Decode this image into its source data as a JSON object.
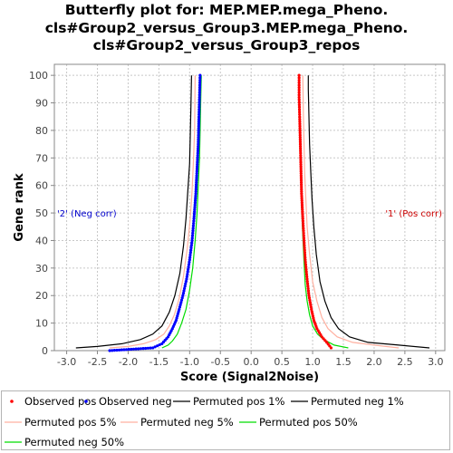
{
  "chart_data": {
    "type": "line",
    "title_lines": [
      "Butterfly plot for: MEP.MEP.mega_Pheno.",
      "cls#Group2_versus_Group3.MEP.mega_Pheno.",
      "cls#Group2_versus_Group3_repos"
    ],
    "xlabel": "Score (Signal2Noise)",
    "ylabel": "Gene rank",
    "xlim": [
      -3.2,
      3.15
    ],
    "ylim": [
      0,
      104
    ],
    "xticks": [
      "-3.0",
      "-2.5",
      "-2.0",
      "-1.5",
      "-1.0",
      "-0.5",
      "0.0",
      "0.5",
      "1.0",
      "1.5",
      "2.0",
      "2.5",
      "3.0"
    ],
    "yticks": [
      "0",
      "10",
      "20",
      "30",
      "40",
      "50",
      "60",
      "70",
      "80",
      "90",
      "100"
    ],
    "grid": true,
    "annotations": {
      "neg": {
        "text": "'2' (Neg corr)",
        "color": "#0000cc"
      },
      "pos": {
        "text": "'1' (Pos corr)",
        "color": "#cc0000"
      }
    },
    "series": [
      {
        "name": "Observed pos",
        "style": "dots",
        "color": "#ff0000",
        "points": [
          [
            1.3,
            1
          ],
          [
            1.23,
            3
          ],
          [
            1.15,
            5
          ],
          [
            1.07,
            8
          ],
          [
            1.02,
            11
          ],
          [
            0.98,
            15
          ],
          [
            0.94,
            20
          ],
          [
            0.91,
            26
          ],
          [
            0.88,
            33
          ],
          [
            0.86,
            40
          ],
          [
            0.84,
            48
          ],
          [
            0.82,
            57
          ],
          [
            0.81,
            66
          ],
          [
            0.8,
            75
          ],
          [
            0.79,
            84
          ],
          [
            0.78,
            92
          ],
          [
            0.78,
            100
          ]
        ]
      },
      {
        "name": "Observed neg",
        "style": "dots",
        "color": "#0000ff",
        "points": [
          [
            -2.3,
            0
          ],
          [
            -1.6,
            1
          ],
          [
            -1.45,
            2.5
          ],
          [
            -1.35,
            5
          ],
          [
            -1.28,
            8
          ],
          [
            -1.22,
            11
          ],
          [
            -1.17,
            15
          ],
          [
            -1.11,
            20
          ],
          [
            -1.05,
            26
          ],
          [
            -1.0,
            33
          ],
          [
            -0.96,
            40
          ],
          [
            -0.93,
            48
          ],
          [
            -0.9,
            57
          ],
          [
            -0.88,
            66
          ],
          [
            -0.86,
            75
          ],
          [
            -0.85,
            84
          ],
          [
            -0.84,
            92
          ],
          [
            -0.83,
            100
          ]
        ]
      },
      {
        "name": "Permuted pos 1%",
        "style": "line",
        "color": "#000000",
        "points": [
          [
            2.9,
            1
          ],
          [
            2.4,
            2
          ],
          [
            1.9,
            3
          ],
          [
            1.6,
            5
          ],
          [
            1.42,
            8
          ],
          [
            1.3,
            12
          ],
          [
            1.2,
            18
          ],
          [
            1.12,
            25
          ],
          [
            1.06,
            35
          ],
          [
            1.02,
            45
          ],
          [
            0.99,
            55
          ],
          [
            0.97,
            65
          ],
          [
            0.95,
            75
          ],
          [
            0.94,
            85
          ],
          [
            0.93,
            95
          ],
          [
            0.93,
            100
          ]
        ]
      },
      {
        "name": "Permuted neg 1%",
        "style": "line",
        "color": "#000000",
        "points": [
          [
            -2.85,
            1
          ],
          [
            -2.5,
            1.5
          ],
          [
            -2.1,
            2.5
          ],
          [
            -1.8,
            4
          ],
          [
            -1.6,
            6
          ],
          [
            -1.45,
            9
          ],
          [
            -1.33,
            14
          ],
          [
            -1.24,
            20
          ],
          [
            -1.16,
            28
          ],
          [
            -1.1,
            38
          ],
          [
            -1.06,
            48
          ],
          [
            -1.03,
            58
          ],
          [
            -1.0,
            68
          ],
          [
            -0.99,
            78
          ],
          [
            -0.98,
            88
          ],
          [
            -0.97,
            100
          ]
        ]
      },
      {
        "name": "Permuted pos 5%",
        "style": "line",
        "color": "#ffb0a0",
        "points": [
          [
            2.4,
            1
          ],
          [
            2.0,
            2
          ],
          [
            1.65,
            3
          ],
          [
            1.4,
            5
          ],
          [
            1.25,
            8
          ],
          [
            1.15,
            12
          ],
          [
            1.07,
            18
          ],
          [
            1.0,
            25
          ],
          [
            0.95,
            35
          ],
          [
            0.91,
            45
          ],
          [
            0.89,
            55
          ],
          [
            0.87,
            65
          ],
          [
            0.86,
            75
          ],
          [
            0.85,
            85
          ],
          [
            0.84,
            100
          ]
        ]
      },
      {
        "name": "Permuted neg 5%",
        "style": "line",
        "color": "#ffb0a0",
        "points": [
          [
            -2.3,
            1
          ],
          [
            -2.0,
            1.5
          ],
          [
            -1.75,
            2.5
          ],
          [
            -1.55,
            4
          ],
          [
            -1.42,
            6
          ],
          [
            -1.33,
            9
          ],
          [
            -1.25,
            13
          ],
          [
            -1.17,
            19
          ],
          [
            -1.1,
            27
          ],
          [
            -1.04,
            37
          ],
          [
            -0.99,
            48
          ],
          [
            -0.96,
            58
          ],
          [
            -0.94,
            68
          ],
          [
            -0.92,
            80
          ],
          [
            -0.91,
            100
          ]
        ]
      },
      {
        "name": "Permuted pos 50%",
        "style": "line",
        "color": "#00dd00",
        "points": [
          [
            1.58,
            1
          ],
          [
            1.35,
            2
          ],
          [
            1.18,
            4
          ],
          [
            1.08,
            6
          ],
          [
            1.0,
            9
          ],
          [
            0.95,
            13
          ],
          [
            0.91,
            18
          ],
          [
            0.88,
            24
          ],
          [
            0.86,
            32
          ],
          [
            0.84,
            42
          ],
          [
            0.82,
            52
          ],
          [
            0.81,
            62
          ],
          [
            0.8,
            72
          ],
          [
            0.79,
            82
          ],
          [
            0.78,
            92
          ],
          [
            0.78,
            100
          ]
        ]
      },
      {
        "name": "Permuted neg 50%",
        "style": "line",
        "color": "#00dd00",
        "points": [
          [
            -1.45,
            1
          ],
          [
            -1.35,
            2
          ],
          [
            -1.28,
            3.5
          ],
          [
            -1.2,
            6
          ],
          [
            -1.13,
            10
          ],
          [
            -1.06,
            15
          ],
          [
            -1.0,
            22
          ],
          [
            -0.95,
            30
          ],
          [
            -0.91,
            40
          ],
          [
            -0.88,
            50
          ],
          [
            -0.86,
            60
          ],
          [
            -0.84,
            70
          ],
          [
            -0.83,
            80
          ],
          [
            -0.82,
            90
          ],
          [
            -0.81,
            100
          ]
        ]
      }
    ]
  },
  "legend": [
    {
      "label": "Observed pos",
      "kind": "dot",
      "color": "#ff0000"
    },
    {
      "label": "Observed neg",
      "kind": "dot",
      "color": "#0000ff"
    },
    {
      "label": "Permuted pos 1%",
      "kind": "line",
      "color": "#000000"
    },
    {
      "label": "Permuted neg 1%",
      "kind": "line",
      "color": "#000000"
    },
    {
      "label": "Permuted pos 5%",
      "kind": "line",
      "color": "#ffb0a0"
    },
    {
      "label": "Permuted neg 5%",
      "kind": "line",
      "color": "#ffb0a0"
    },
    {
      "label": "Permuted pos 50%",
      "kind": "line",
      "color": "#00dd00"
    },
    {
      "label": "Permuted neg 50%",
      "kind": "line",
      "color": "#00dd00"
    }
  ]
}
